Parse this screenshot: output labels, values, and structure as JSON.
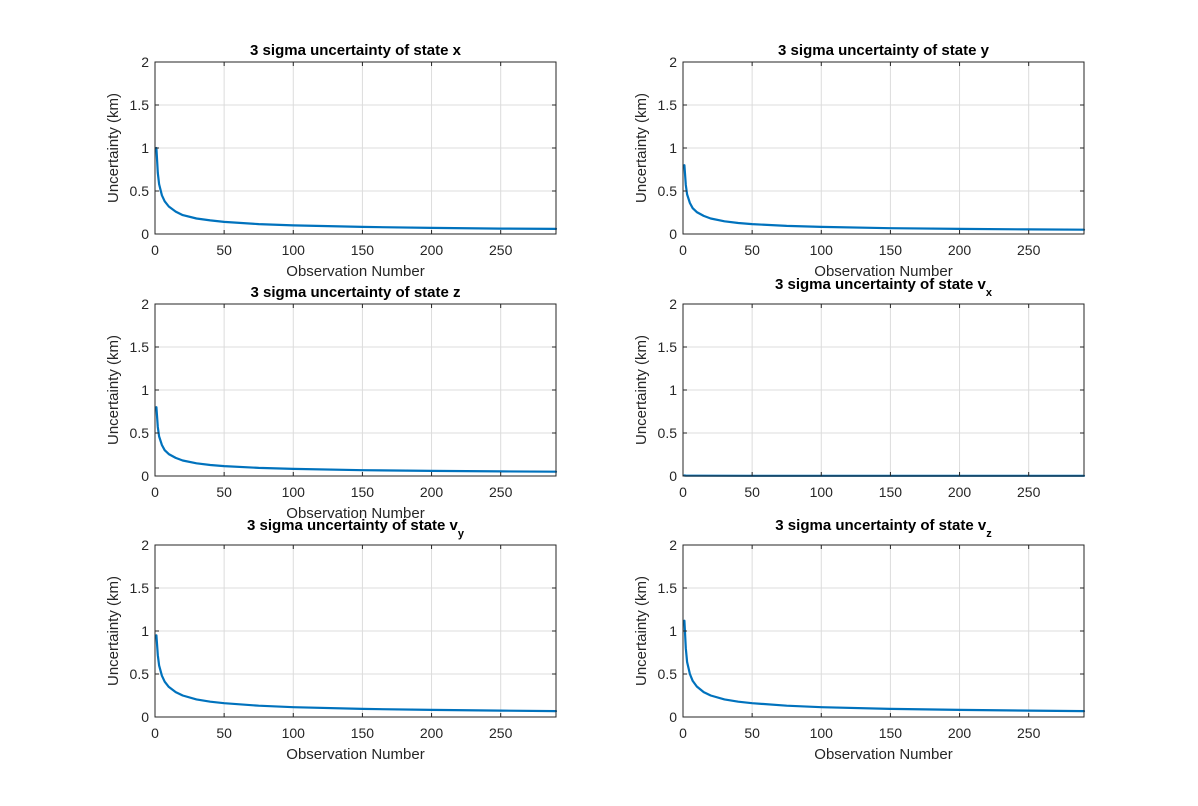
{
  "figure": {
    "background": "#ffffff",
    "line_color": "#0072bd",
    "grid_color": "#dcdcdc"
  },
  "chart_data": [
    {
      "type": "line",
      "title": "3 sigma uncertainty of state x",
      "title_main": "3 sigma uncertainty of state x",
      "title_sub": "",
      "xlabel": "Observation Number",
      "ylabel": "Uncertainty (km)",
      "xlim": [
        0,
        290
      ],
      "ylim": [
        0,
        2
      ],
      "xticks": [
        0,
        50,
        100,
        150,
        200,
        250
      ],
      "yticks": [
        0,
        0.5,
        1,
        1.5,
        2
      ],
      "ytick_labels": [
        "0",
        "0.5",
        "1",
        "1.5",
        "2"
      ],
      "grid": true,
      "series": [
        {
          "x": [
            1,
            2,
            3,
            5,
            7,
            10,
            15,
            20,
            30,
            40,
            50,
            75,
            100,
            150,
            200,
            250,
            290
          ],
          "y": [
            1.0,
            0.71,
            0.58,
            0.45,
            0.38,
            0.32,
            0.26,
            0.22,
            0.18,
            0.158,
            0.141,
            0.115,
            0.1,
            0.082,
            0.071,
            0.063,
            0.059
          ]
        }
      ]
    },
    {
      "type": "line",
      "title": "3 sigma uncertainty of state y",
      "title_main": "3 sigma uncertainty of state y",
      "title_sub": "",
      "xlabel": "Observation Number",
      "ylabel": "Uncertainty (km)",
      "xlim": [
        0,
        290
      ],
      "ylim": [
        0,
        2
      ],
      "xticks": [
        0,
        50,
        100,
        150,
        200,
        250
      ],
      "yticks": [
        0,
        0.5,
        1,
        1.5,
        2
      ],
      "ytick_labels": [
        "0",
        "0.5",
        "1",
        "1.5",
        "2"
      ],
      "grid": true,
      "series": [
        {
          "x": [
            1,
            2,
            3,
            5,
            7,
            10,
            15,
            20,
            30,
            40,
            50,
            75,
            100,
            150,
            200,
            250,
            290
          ],
          "y": [
            0.8,
            0.57,
            0.46,
            0.36,
            0.3,
            0.255,
            0.21,
            0.18,
            0.148,
            0.128,
            0.115,
            0.094,
            0.082,
            0.068,
            0.059,
            0.053,
            0.05
          ]
        }
      ]
    },
    {
      "type": "line",
      "title": "3 sigma uncertainty of state z",
      "title_main": "3 sigma uncertainty of state z",
      "title_sub": "",
      "xlabel": "Observation Number",
      "ylabel": "Uncertainty (km)",
      "xlim": [
        0,
        290
      ],
      "ylim": [
        0,
        2
      ],
      "xticks": [
        0,
        50,
        100,
        150,
        200,
        250
      ],
      "yticks": [
        0,
        0.5,
        1,
        1.5,
        2
      ],
      "ytick_labels": [
        "0",
        "0.5",
        "1",
        "1.5",
        "2"
      ],
      "grid": true,
      "series": [
        {
          "x": [
            1,
            2,
            3,
            5,
            7,
            10,
            15,
            20,
            30,
            40,
            50,
            75,
            100,
            150,
            200,
            250,
            290
          ],
          "y": [
            0.8,
            0.57,
            0.46,
            0.36,
            0.3,
            0.255,
            0.21,
            0.18,
            0.148,
            0.128,
            0.115,
            0.094,
            0.082,
            0.068,
            0.059,
            0.053,
            0.05
          ]
        }
      ]
    },
    {
      "type": "line",
      "title": "3 sigma uncertainty of state vx",
      "title_main": "3 sigma uncertainty of state v",
      "title_sub": "x",
      "xlabel": "",
      "ylabel": "Uncertainty (km)",
      "xlim": [
        0,
        290
      ],
      "ylim": [
        0,
        2
      ],
      "xticks": [
        0,
        50,
        100,
        150,
        200,
        250
      ],
      "yticks": [
        0,
        0.5,
        1,
        1.5,
        2
      ],
      "ytick_labels": [
        "0",
        "0.5",
        "1",
        "1.5",
        "2"
      ],
      "grid": true,
      "series": [
        {
          "x": [
            1,
            2,
            5,
            10,
            50,
            100,
            150,
            200,
            250,
            290
          ],
          "y": [
            0.006,
            0.005,
            0.004,
            0.003,
            0.002,
            0.002,
            0.002,
            0.002,
            0.002,
            0.002
          ]
        }
      ]
    },
    {
      "type": "line",
      "title": "3 sigma uncertainty of state vy",
      "title_main": "3 sigma uncertainty of state v",
      "title_sub": "y",
      "xlabel": "Observation Number",
      "ylabel": "Uncertainty (km)",
      "xlim": [
        0,
        290
      ],
      "ylim": [
        0,
        2
      ],
      "xticks": [
        0,
        50,
        100,
        150,
        200,
        250
      ],
      "yticks": [
        0,
        0.5,
        1,
        1.5,
        2
      ],
      "ytick_labels": [
        "0",
        "0.5",
        "1",
        "1.5",
        "2"
      ],
      "grid": true,
      "series": [
        {
          "x": [
            1,
            2,
            3,
            5,
            7,
            10,
            15,
            20,
            30,
            40,
            50,
            75,
            100,
            150,
            200,
            250,
            290
          ],
          "y": [
            0.95,
            0.72,
            0.6,
            0.48,
            0.41,
            0.35,
            0.29,
            0.25,
            0.205,
            0.178,
            0.16,
            0.131,
            0.114,
            0.094,
            0.082,
            0.074,
            0.069
          ]
        }
      ]
    },
    {
      "type": "line",
      "title": "3 sigma uncertainty of state vz",
      "title_main": "3 sigma uncertainty of state v",
      "title_sub": "z",
      "xlabel": "Observation Number",
      "ylabel": "Uncertainty (km)",
      "xlim": [
        0,
        290
      ],
      "ylim": [
        0,
        2
      ],
      "xticks": [
        0,
        50,
        100,
        150,
        200,
        250
      ],
      "yticks": [
        0,
        0.5,
        1,
        1.5,
        2
      ],
      "ytick_labels": [
        "0",
        "0.5",
        "1",
        "1.5",
        "2"
      ],
      "grid": true,
      "series": [
        {
          "x": [
            1,
            2,
            3,
            5,
            7,
            10,
            15,
            20,
            30,
            40,
            50,
            75,
            100,
            150,
            200,
            250,
            290
          ],
          "y": [
            1.12,
            0.8,
            0.64,
            0.5,
            0.42,
            0.355,
            0.29,
            0.25,
            0.205,
            0.178,
            0.16,
            0.131,
            0.114,
            0.094,
            0.082,
            0.074,
            0.069
          ]
        }
      ]
    }
  ]
}
